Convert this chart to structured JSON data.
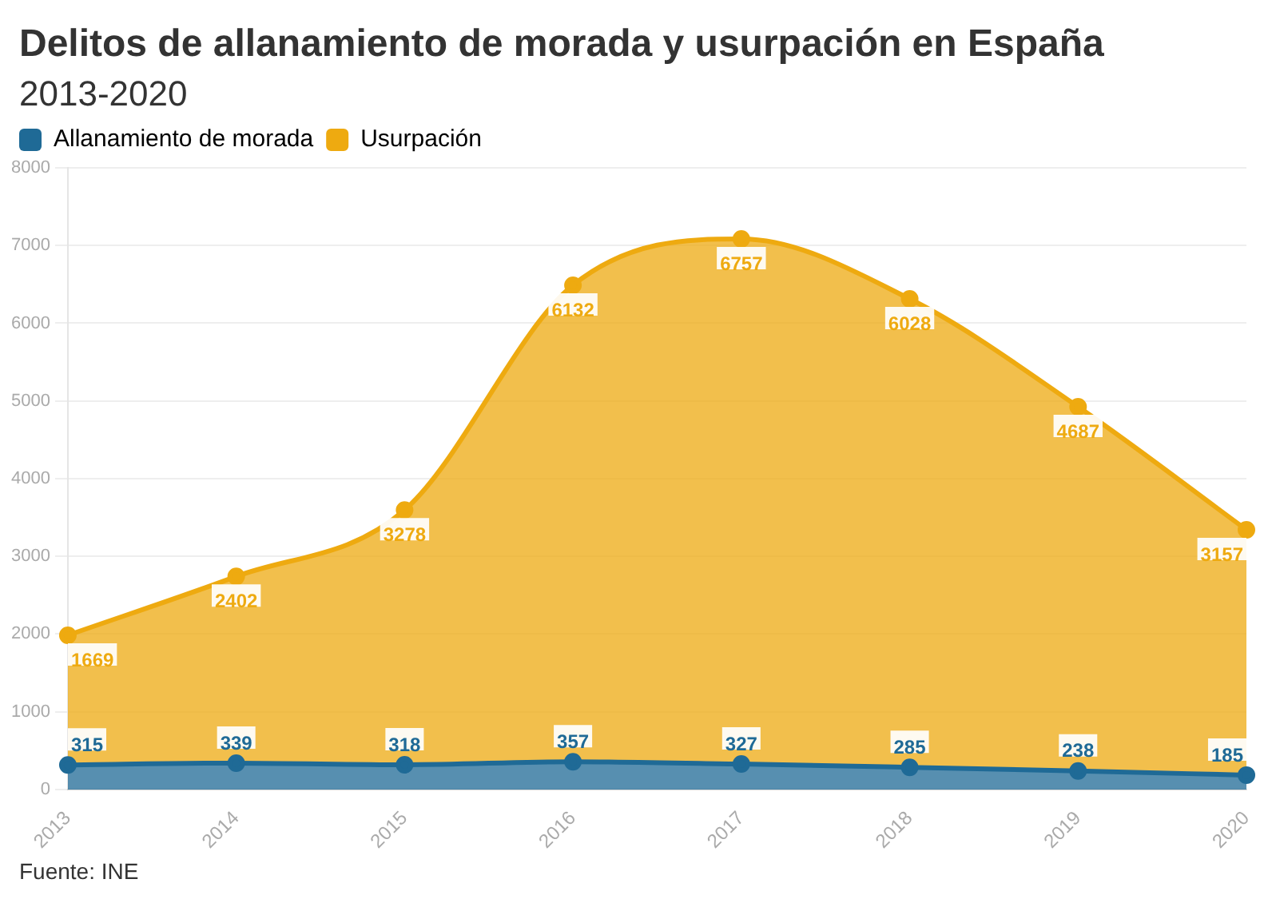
{
  "chart_data": {
    "type": "area",
    "title": "Delitos de allanamiento de morada y usurpación en España",
    "subtitle": "2013-2020",
    "categories": [
      "2013",
      "2014",
      "2015",
      "2016",
      "2017",
      "2018",
      "2019",
      "2020"
    ],
    "series": [
      {
        "name": "Allanamiento de morada",
        "color": "#1f6a96",
        "values": [
          315,
          339,
          318,
          357,
          327,
          285,
          238,
          185
        ]
      },
      {
        "name": "Usurpación",
        "color": "#eeaa10",
        "values": [
          1669,
          2402,
          3278,
          6132,
          6757,
          6028,
          4687,
          3157
        ]
      }
    ],
    "stacked": true,
    "ylim": [
      0,
      8000
    ],
    "yticks": [
      0,
      1000,
      2000,
      3000,
      4000,
      5000,
      6000,
      7000,
      8000
    ],
    "grid": "y",
    "legend": "top left",
    "marker": "circle",
    "data_labels": true,
    "annotations": [
      "Fuente: INE"
    ]
  }
}
